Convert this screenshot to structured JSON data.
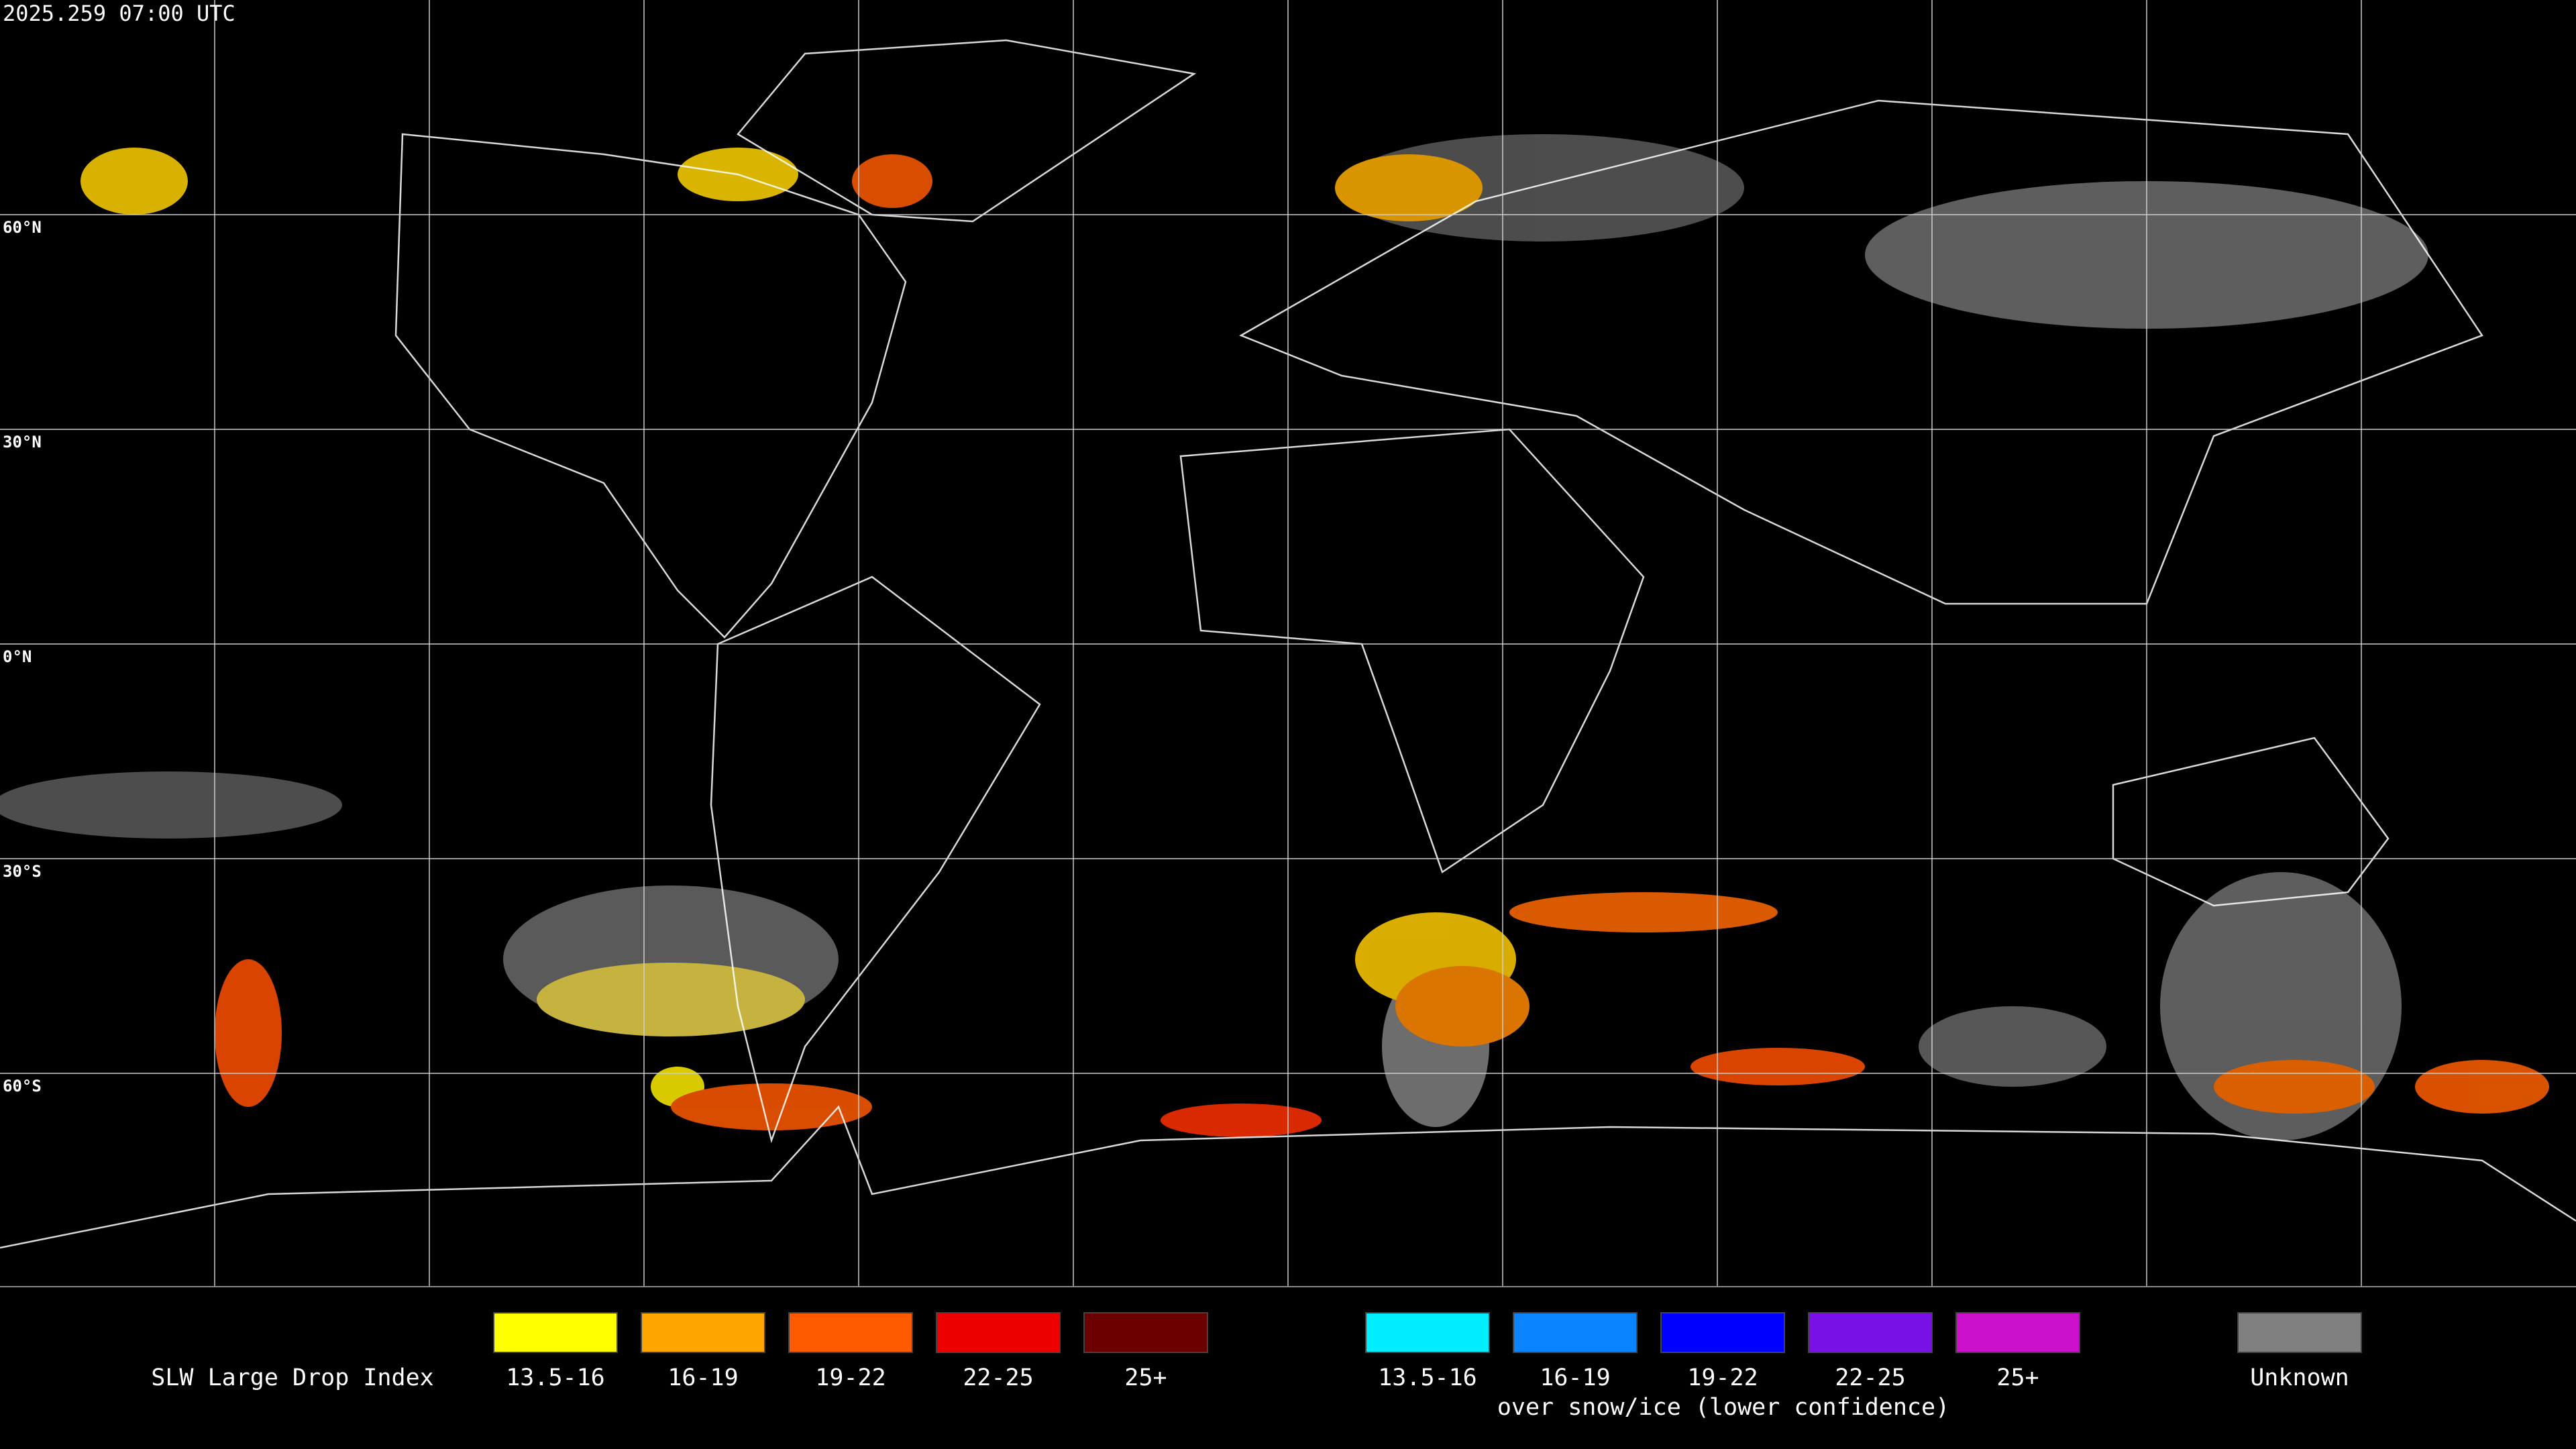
{
  "header": {
    "timestamp": "2025.259 07:00 UTC"
  },
  "map": {
    "lat_labels": [
      "60°N",
      "30°N",
      "0°N",
      "30°S",
      "60°S"
    ]
  },
  "legend": {
    "title": "SLW Large Drop Index",
    "items": [
      {
        "label": "13.5-16",
        "color": "#ffff00"
      },
      {
        "label": "16-19",
        "color": "#ffa500"
      },
      {
        "label": "19-22",
        "color": "#ff5a00"
      },
      {
        "label": "22-25",
        "color": "#ee0000"
      },
      {
        "label": "25+",
        "color": "#6a0000"
      },
      {
        "label": "13.5-16",
        "color": "#00eeff"
      },
      {
        "label": "16-19",
        "color": "#0a84ff"
      },
      {
        "label": "19-22",
        "color": "#0000ff"
      },
      {
        "label": "22-25",
        "color": "#7a10e8"
      },
      {
        "label": "25+",
        "color": "#cc10cc"
      },
      {
        "label": "Unknown",
        "color": "#808080"
      }
    ],
    "caption": "over snow/ice (lower confidence)"
  }
}
